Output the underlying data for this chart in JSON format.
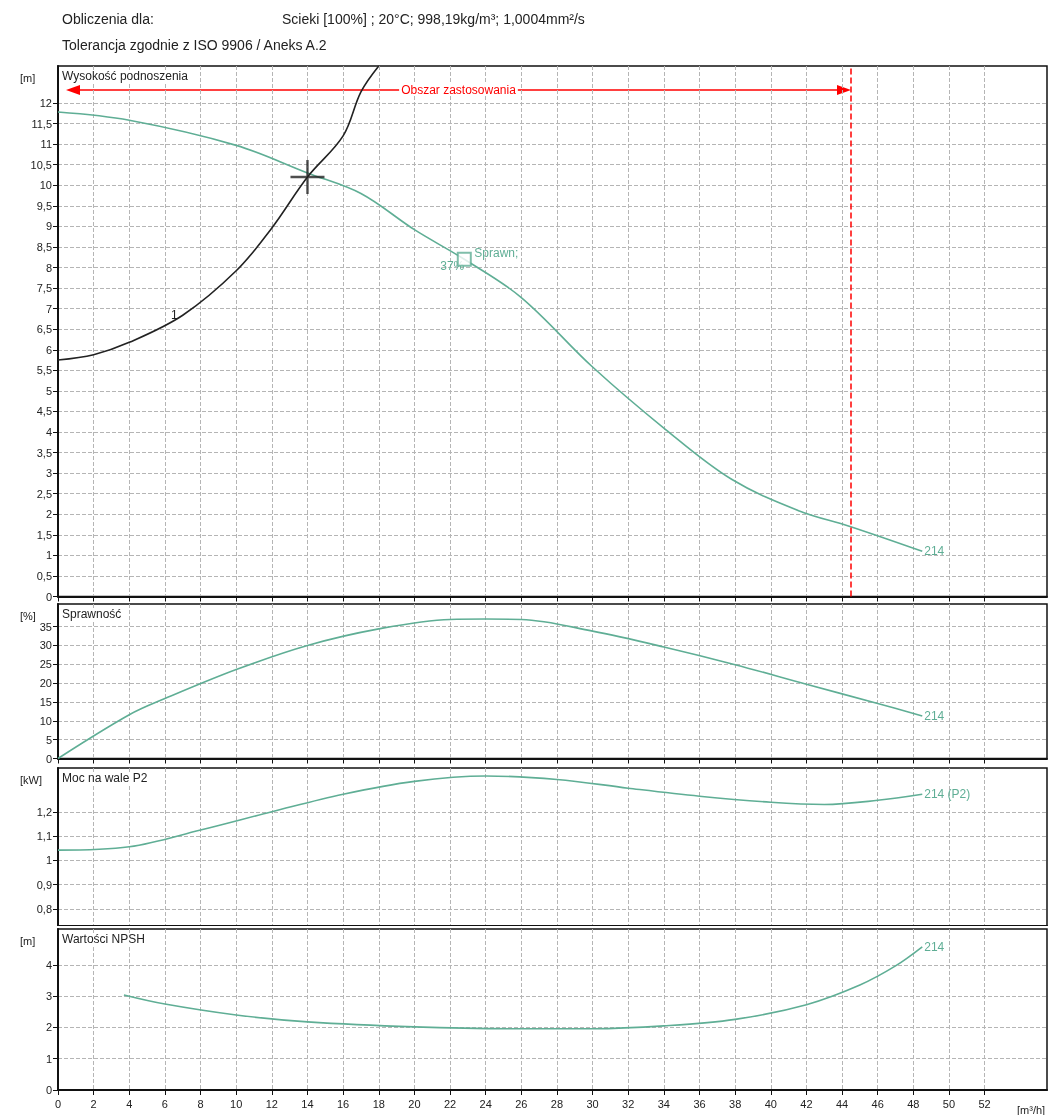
{
  "chart_data": [
    {
      "type": "line",
      "title": "Obliczenia dla:",
      "subtitle": "Scieki [100%] ; 20°C; 998,19kg/m³; 1,0004mm²/s",
      "ylabel": "[m]",
      "legend_title": "Wysokość podnoszenia",
      "annotations": [
        "Tolerancja zgodnie z ISO 9906 / Aneks A.2",
        "Obszar zastosowania",
        "37%"
      ],
      "xlim": [
        0,
        55.5
      ],
      "xticks": [
        0,
        2,
        4,
        6,
        8,
        10,
        12,
        14,
        16,
        18,
        20,
        22,
        24,
        26,
        28,
        30,
        32,
        34,
        36,
        38,
        40,
        42,
        44,
        46,
        48,
        50,
        52
      ],
      "ylim": [
        0,
        12.9
      ],
      "yticks": [
        0,
        {
          "value": 0.5,
          "label": "0,5"
        },
        1,
        {
          "value": 1.5,
          "label": "1,5"
        },
        2,
        {
          "value": 2.5,
          "label": "2,5"
        },
        3,
        {
          "value": 3.5,
          "label": "3,5"
        },
        4,
        {
          "value": 4.5,
          "label": "4,5"
        },
        5,
        {
          "value": 5.5,
          "label": "5,5"
        },
        6,
        {
          "value": 6.5,
          "label": "6,5"
        },
        7,
        {
          "value": 7.5,
          "label": "7,5"
        },
        8,
        {
          "value": 8.5,
          "label": "8,5"
        },
        9,
        {
          "value": 9.5,
          "label": "9,5"
        },
        10,
        {
          "value": 10.5,
          "label": "10,5"
        },
        11,
        {
          "value": 11.5,
          "label": "11,5"
        },
        12
      ],
      "tick_labels": "y",
      "grid": true,
      "marker": "none",
      "ref_lines": [
        {
          "axis": "x",
          "value": 44.5,
          "color": "#ff0000",
          "line_style": "dashed"
        }
      ],
      "series": [
        {
          "name": "214",
          "color": "#5fae95",
          "x": [
            0,
            4,
            10,
            14,
            17,
            20,
            22.8,
            26,
            30,
            34.1,
            37.8,
            41.6,
            44.4,
            48.5
          ],
          "values": [
            11.78,
            11.58,
            10.97,
            10.3,
            9.8,
            8.92,
            8.2,
            7.27,
            5.58,
            4.06,
            2.85,
            2.08,
            1.71,
            1.1
          ]
        },
        {
          "name": "1",
          "color": "#222222",
          "x": [
            0,
            2,
            4,
            7,
            10,
            12,
            14,
            16,
            17,
            18
          ],
          "values": [
            5.75,
            5.88,
            6.18,
            6.84,
            7.92,
            8.96,
            10.2,
            11.2,
            12.27,
            12.9
          ]
        },
        {
          "type": "scatter",
          "marker": "cross",
          "color": "#222222",
          "x": [
            14
          ],
          "values": [
            10.2
          ]
        },
        {
          "type": "scatter",
          "name": "Sprawn;",
          "marker": "square",
          "color": "#5fae95",
          "x": [
            22.8
          ],
          "values": [
            8.2
          ]
        }
      ]
    },
    {
      "type": "line",
      "ylabel": "[%]",
      "legend_title": "Sprawność",
      "xlim": [
        0,
        55.5
      ],
      "xticks": [
        0,
        2,
        4,
        6,
        8,
        10,
        12,
        14,
        16,
        18,
        20,
        22,
        24,
        26,
        28,
        30,
        32,
        34,
        36,
        38,
        40,
        42,
        44,
        46,
        48,
        50,
        52
      ],
      "ylim": [
        0,
        41
      ],
      "yticks": [
        0,
        5,
        10,
        15,
        20,
        25,
        30,
        35
      ],
      "tick_labels": "y",
      "grid": true,
      "marker": "none",
      "series": [
        {
          "name": "214",
          "color": "#5fae95",
          "x": [
            0,
            4,
            6,
            10,
            14,
            18,
            22,
            24,
            26,
            30,
            34,
            38,
            42,
            46,
            48.5
          ],
          "values": [
            0,
            11.6,
            15.9,
            23.6,
            30,
            34.4,
            36.9,
            37,
            36.9,
            33.8,
            29.6,
            24.9,
            19.7,
            14.6,
            11.3
          ]
        }
      ]
    },
    {
      "type": "line",
      "ylabel": "[kW]",
      "legend_title": "Moc na wale P2",
      "xlim": [
        0,
        55.5
      ],
      "xticks": [
        0,
        2,
        4,
        6,
        8,
        10,
        12,
        14,
        16,
        18,
        20,
        22,
        24,
        26,
        28,
        30,
        32,
        34,
        36,
        38,
        40,
        42,
        44,
        46,
        48,
        50,
        52
      ],
      "ylim": [
        0.73,
        1.38
      ],
      "yticks": [
        {
          "value": 0.8,
          "label": "0,8"
        },
        {
          "value": 0.9,
          "label": "0,9"
        },
        1,
        {
          "value": 1.1,
          "label": "1,1"
        },
        {
          "value": 1.2,
          "label": "1,2"
        }
      ],
      "tick_labels": "y",
      "grid": true,
      "marker": "none",
      "series": [
        {
          "name": "214 (P2)",
          "color": "#5fae95",
          "x": [
            0,
            4,
            8,
            12,
            16,
            20,
            24,
            28,
            32,
            36,
            40,
            43,
            46,
            48.5
          ],
          "values": [
            1.042,
            1.056,
            1.125,
            1.2,
            1.272,
            1.325,
            1.347,
            1.333,
            1.297,
            1.264,
            1.239,
            1.23,
            1.247,
            1.272
          ]
        }
      ]
    },
    {
      "type": "line",
      "ylabel": "[m]",
      "legend_title": "Wartości NPSH",
      "xlabel": "[m³/h]",
      "xlim": [
        0,
        55.5
      ],
      "xticks": [
        0,
        2,
        4,
        6,
        8,
        10,
        12,
        14,
        16,
        18,
        20,
        22,
        24,
        26,
        28,
        30,
        32,
        34,
        36,
        38,
        40,
        42,
        44,
        46,
        48,
        50,
        52
      ],
      "ylim": [
        0,
        5.15
      ],
      "yticks": [
        0,
        1,
        2,
        3,
        4
      ],
      "grid": true,
      "marker": "none",
      "series": [
        {
          "name": "214",
          "color": "#5fae95",
          "x": [
            3.7,
            6,
            10,
            14,
            20,
            26,
            30,
            34,
            38,
            42,
            45,
            47,
            48.5
          ],
          "values": [
            3.04,
            2.75,
            2.4,
            2.18,
            2.02,
            1.96,
            1.96,
            2.05,
            2.26,
            2.73,
            3.36,
            3.97,
            4.58
          ]
        }
      ]
    }
  ]
}
